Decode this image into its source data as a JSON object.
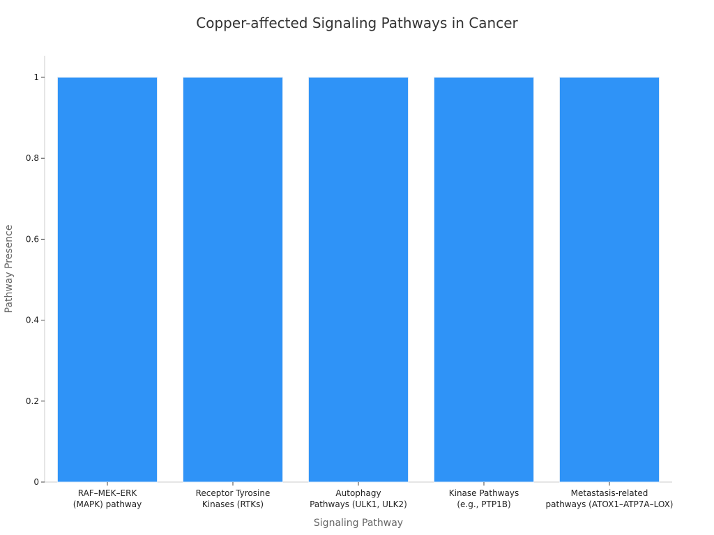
{
  "chart_data": {
    "type": "bar",
    "title": "Copper-affected Signaling Pathways in Cancer",
    "xlabel": "Signaling Pathway",
    "ylabel": "Pathway Presence",
    "categories": [
      [
        "RAF–MEK–ERK",
        "(MAPK) pathway"
      ],
      [
        "Receptor Tyrosine",
        "Kinases (RTKs)"
      ],
      [
        "Autophagy",
        "Pathways (ULK1, ULK2)"
      ],
      [
        "Kinase Pathways",
        "(e.g., PTP1B)"
      ],
      [
        "Metastasis-related",
        "pathways (ATOX1–ATP7A–LOX)"
      ]
    ],
    "values": [
      1,
      1,
      1,
      1,
      1
    ],
    "ylim": [
      0,
      1.05
    ],
    "yticks": [
      "0",
      "0.2",
      "0.4",
      "0.6",
      "0.8",
      "1"
    ],
    "grid": false,
    "colors": {
      "bar": "#2f93f7"
    }
  }
}
